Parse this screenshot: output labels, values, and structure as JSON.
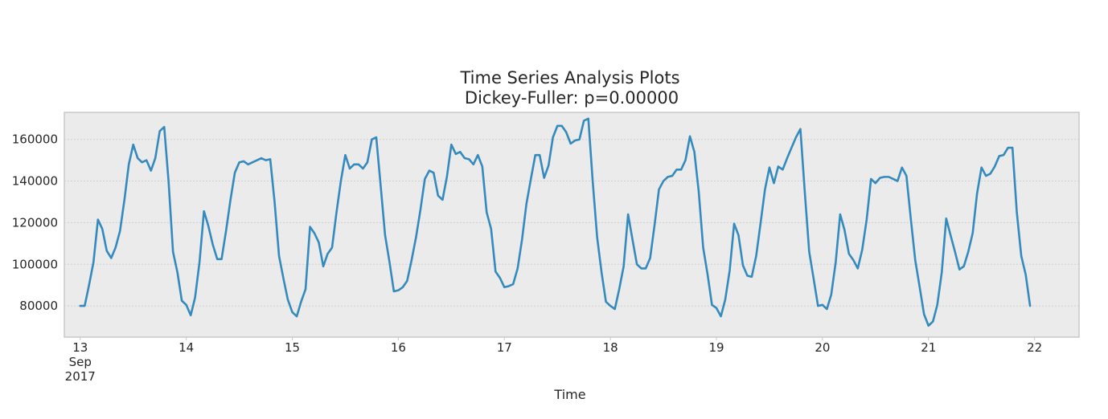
{
  "chart_data": {
    "type": "line",
    "title": "Time Series Analysis Plots",
    "subtitle": "Dickey-Fuller: p=0.00000",
    "xlabel": "Time",
    "ylabel": "",
    "x_unit": "day of Sep 2017 (hourly samples)",
    "xlim": [
      12.85,
      22.42
    ],
    "ylim": [
      65000,
      173000
    ],
    "grid": "y-only",
    "x_ticks": [
      {
        "value": 13,
        "lines": [
          "13",
          "Sep",
          "2017"
        ]
      },
      {
        "value": 14,
        "lines": [
          "14"
        ]
      },
      {
        "value": 15,
        "lines": [
          "15"
        ]
      },
      {
        "value": 16,
        "lines": [
          "16"
        ]
      },
      {
        "value": 17,
        "lines": [
          "17"
        ]
      },
      {
        "value": 18,
        "lines": [
          "18"
        ]
      },
      {
        "value": 19,
        "lines": [
          "19"
        ]
      },
      {
        "value": 20,
        "lines": [
          "20"
        ]
      },
      {
        "value": 21,
        "lines": [
          "21"
        ]
      },
      {
        "value": 22,
        "lines": [
          "22"
        ]
      }
    ],
    "y_ticks": [
      {
        "value": 80000,
        "label": "80000"
      },
      {
        "value": 100000,
        "label": "100000"
      },
      {
        "value": 120000,
        "label": "120000"
      },
      {
        "value": 140000,
        "label": "140000"
      },
      {
        "value": 160000,
        "label": "160000"
      }
    ],
    "series": [
      {
        "color": "#348abd",
        "points": [
          [
            13.0,
            80000
          ],
          [
            13.042,
            80000
          ],
          [
            13.083,
            90000
          ],
          [
            13.125,
            101000
          ],
          [
            13.167,
            121500
          ],
          [
            13.208,
            117000
          ],
          [
            13.25,
            106500
          ],
          [
            13.292,
            103000
          ],
          [
            13.333,
            108000
          ],
          [
            13.375,
            116000
          ],
          [
            13.417,
            131000
          ],
          [
            13.458,
            148000
          ],
          [
            13.5,
            157500
          ],
          [
            13.542,
            151000
          ],
          [
            13.583,
            149000
          ],
          [
            13.625,
            150000
          ],
          [
            13.667,
            145000
          ],
          [
            13.708,
            151000
          ],
          [
            13.75,
            164000
          ],
          [
            13.792,
            166000
          ],
          [
            13.833,
            140000
          ],
          [
            13.875,
            106000
          ],
          [
            13.917,
            96000
          ],
          [
            13.958,
            82500
          ],
          [
            14.0,
            80500
          ],
          [
            14.042,
            75500
          ],
          [
            14.083,
            84000
          ],
          [
            14.125,
            101000
          ],
          [
            14.167,
            125500
          ],
          [
            14.208,
            118500
          ],
          [
            14.25,
            109500
          ],
          [
            14.292,
            102500
          ],
          [
            14.333,
            102500
          ],
          [
            14.375,
            116000
          ],
          [
            14.417,
            131000
          ],
          [
            14.458,
            144000
          ],
          [
            14.5,
            149000
          ],
          [
            14.542,
            149500
          ],
          [
            14.583,
            148000
          ],
          [
            14.625,
            149000
          ],
          [
            14.667,
            150000
          ],
          [
            14.708,
            151000
          ],
          [
            14.75,
            150000
          ],
          [
            14.792,
            150500
          ],
          [
            14.833,
            130000
          ],
          [
            14.875,
            104000
          ],
          [
            14.917,
            93000
          ],
          [
            14.958,
            83000
          ],
          [
            15.0,
            77000
          ],
          [
            15.042,
            75000
          ],
          [
            15.083,
            82000
          ],
          [
            15.125,
            88000
          ],
          [
            15.167,
            118000
          ],
          [
            15.208,
            115000
          ],
          [
            15.25,
            110500
          ],
          [
            15.292,
            99000
          ],
          [
            15.333,
            105000
          ],
          [
            15.375,
            108000
          ],
          [
            15.417,
            125000
          ],
          [
            15.458,
            140000
          ],
          [
            15.5,
            152500
          ],
          [
            15.542,
            146000
          ],
          [
            15.583,
            148000
          ],
          [
            15.625,
            148000
          ],
          [
            15.667,
            146000
          ],
          [
            15.708,
            149000
          ],
          [
            15.75,
            160000
          ],
          [
            15.792,
            161000
          ],
          [
            15.833,
            138000
          ],
          [
            15.875,
            114000
          ],
          [
            15.917,
            101000
          ],
          [
            15.958,
            87000
          ],
          [
            16.0,
            87500
          ],
          [
            16.042,
            89000
          ],
          [
            16.083,
            92000
          ],
          [
            16.125,
            102000
          ],
          [
            16.167,
            113000
          ],
          [
            16.208,
            126000
          ],
          [
            16.25,
            141000
          ],
          [
            16.292,
            145000
          ],
          [
            16.333,
            144000
          ],
          [
            16.375,
            133000
          ],
          [
            16.417,
            131000
          ],
          [
            16.458,
            142000
          ],
          [
            16.5,
            157500
          ],
          [
            16.542,
            153000
          ],
          [
            16.583,
            154000
          ],
          [
            16.625,
            151000
          ],
          [
            16.667,
            150500
          ],
          [
            16.708,
            148000
          ],
          [
            16.75,
            152500
          ],
          [
            16.792,
            147000
          ],
          [
            16.833,
            125000
          ],
          [
            16.875,
            117000
          ],
          [
            16.917,
            96500
          ],
          [
            16.958,
            93500
          ],
          [
            17.0,
            89000
          ],
          [
            17.042,
            89500
          ],
          [
            17.083,
            90500
          ],
          [
            17.125,
            98000
          ],
          [
            17.167,
            112000
          ],
          [
            17.208,
            129000
          ],
          [
            17.25,
            141000
          ],
          [
            17.292,
            152500
          ],
          [
            17.333,
            152500
          ],
          [
            17.375,
            141500
          ],
          [
            17.417,
            147500
          ],
          [
            17.458,
            161000
          ],
          [
            17.5,
            166500
          ],
          [
            17.542,
            166500
          ],
          [
            17.583,
            163500
          ],
          [
            17.625,
            158000
          ],
          [
            17.667,
            159500
          ],
          [
            17.708,
            160000
          ],
          [
            17.75,
            169000
          ],
          [
            17.792,
            170000
          ],
          [
            17.833,
            140000
          ],
          [
            17.875,
            113000
          ],
          [
            17.917,
            96000
          ],
          [
            17.958,
            82000
          ],
          [
            18.0,
            80000
          ],
          [
            18.042,
            78500
          ],
          [
            18.083,
            88000
          ],
          [
            18.125,
            99000
          ],
          [
            18.167,
            124000
          ],
          [
            18.208,
            112000
          ],
          [
            18.25,
            100000
          ],
          [
            18.292,
            98000
          ],
          [
            18.333,
            98000
          ],
          [
            18.375,
            103000
          ],
          [
            18.417,
            119000
          ],
          [
            18.458,
            136000
          ],
          [
            18.5,
            140000
          ],
          [
            18.542,
            142000
          ],
          [
            18.583,
            142500
          ],
          [
            18.625,
            145500
          ],
          [
            18.667,
            145500
          ],
          [
            18.708,
            150000
          ],
          [
            18.75,
            161500
          ],
          [
            18.792,
            154000
          ],
          [
            18.833,
            135000
          ],
          [
            18.875,
            108000
          ],
          [
            18.917,
            95000
          ],
          [
            18.958,
            80500
          ],
          [
            19.0,
            79000
          ],
          [
            19.042,
            75000
          ],
          [
            19.083,
            83000
          ],
          [
            19.125,
            97000
          ],
          [
            19.167,
            119500
          ],
          [
            19.208,
            114000
          ],
          [
            19.25,
            99500
          ],
          [
            19.292,
            94500
          ],
          [
            19.333,
            94000
          ],
          [
            19.375,
            104000
          ],
          [
            19.417,
            120000
          ],
          [
            19.458,
            136000
          ],
          [
            19.5,
            146500
          ],
          [
            19.542,
            139000
          ],
          [
            19.583,
            147000
          ],
          [
            19.625,
            145500
          ],
          [
            19.667,
            151000
          ],
          [
            19.708,
            156000
          ],
          [
            19.75,
            161000
          ],
          [
            19.792,
            165000
          ],
          [
            19.833,
            135000
          ],
          [
            19.875,
            106000
          ],
          [
            19.917,
            93000
          ],
          [
            19.958,
            80000
          ],
          [
            20.0,
            80500
          ],
          [
            20.042,
            78500
          ],
          [
            20.083,
            85500
          ],
          [
            20.125,
            101000
          ],
          [
            20.167,
            124000
          ],
          [
            20.208,
            116500
          ],
          [
            20.25,
            105000
          ],
          [
            20.292,
            102000
          ],
          [
            20.333,
            98000
          ],
          [
            20.375,
            107000
          ],
          [
            20.417,
            121500
          ],
          [
            20.458,
            141000
          ],
          [
            20.5,
            139000
          ],
          [
            20.542,
            141500
          ],
          [
            20.583,
            142000
          ],
          [
            20.625,
            142000
          ],
          [
            20.667,
            141000
          ],
          [
            20.708,
            140000
          ],
          [
            20.75,
            146500
          ],
          [
            20.792,
            142500
          ],
          [
            20.833,
            122000
          ],
          [
            20.875,
            102000
          ],
          [
            20.917,
            89000
          ],
          [
            20.958,
            76000
          ],
          [
            21.0,
            70500
          ],
          [
            21.042,
            72500
          ],
          [
            21.083,
            80500
          ],
          [
            21.125,
            96000
          ],
          [
            21.167,
            122000
          ],
          [
            21.208,
            114000
          ],
          [
            21.25,
            106000
          ],
          [
            21.292,
            97500
          ],
          [
            21.333,
            99000
          ],
          [
            21.375,
            106000
          ],
          [
            21.417,
            115000
          ],
          [
            21.458,
            134000
          ],
          [
            21.5,
            146500
          ],
          [
            21.542,
            142500
          ],
          [
            21.583,
            143500
          ],
          [
            21.625,
            147000
          ],
          [
            21.667,
            152000
          ],
          [
            21.708,
            152500
          ],
          [
            21.75,
            156000
          ],
          [
            21.792,
            156000
          ],
          [
            21.833,
            125000
          ],
          [
            21.875,
            104000
          ],
          [
            21.917,
            95000
          ],
          [
            21.958,
            80000
          ]
        ]
      }
    ]
  }
}
